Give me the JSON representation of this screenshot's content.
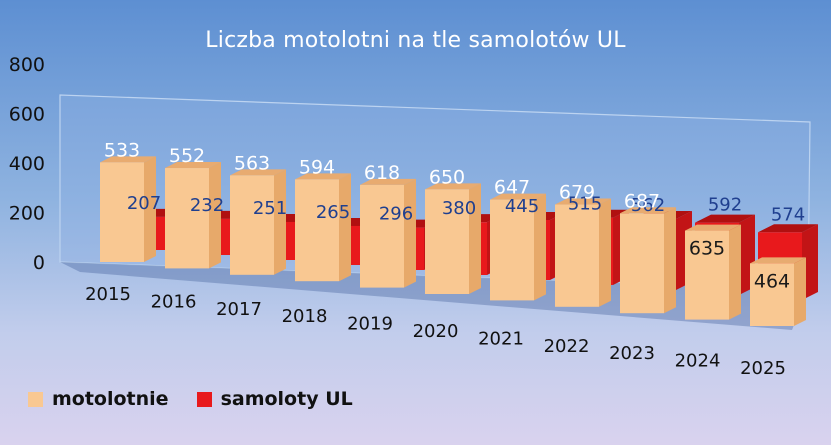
{
  "chart_data": {
    "type": "bar",
    "title": "Liczba motolotni na tle samolotów UL",
    "categories": [
      "2015",
      "2016",
      "2017",
      "2018",
      "2019",
      "2020",
      "2021",
      "2022",
      "2023",
      "2024",
      "2025"
    ],
    "series": [
      {
        "name": "motolotnie",
        "values": [
          533,
          552,
          563,
          594,
          618,
          650,
          647,
          679,
          687,
          635,
          464
        ],
        "color": "#f9c892"
      },
      {
        "name": "samoloty UL",
        "values": [
          207,
          232,
          251,
          265,
          296,
          380,
          445,
          515,
          562,
          592,
          574
        ],
        "color": "#e8191c"
      }
    ],
    "y_ticks": [
      "0",
      "200",
      "400",
      "600",
      "800"
    ],
    "ylim": [
      0,
      800
    ],
    "grid": false,
    "legend_position": "bottom-left",
    "label_colors": {
      "front": "#ffffff",
      "back": "#1f3f8f",
      "front_inside": "#1a1a1a"
    }
  }
}
